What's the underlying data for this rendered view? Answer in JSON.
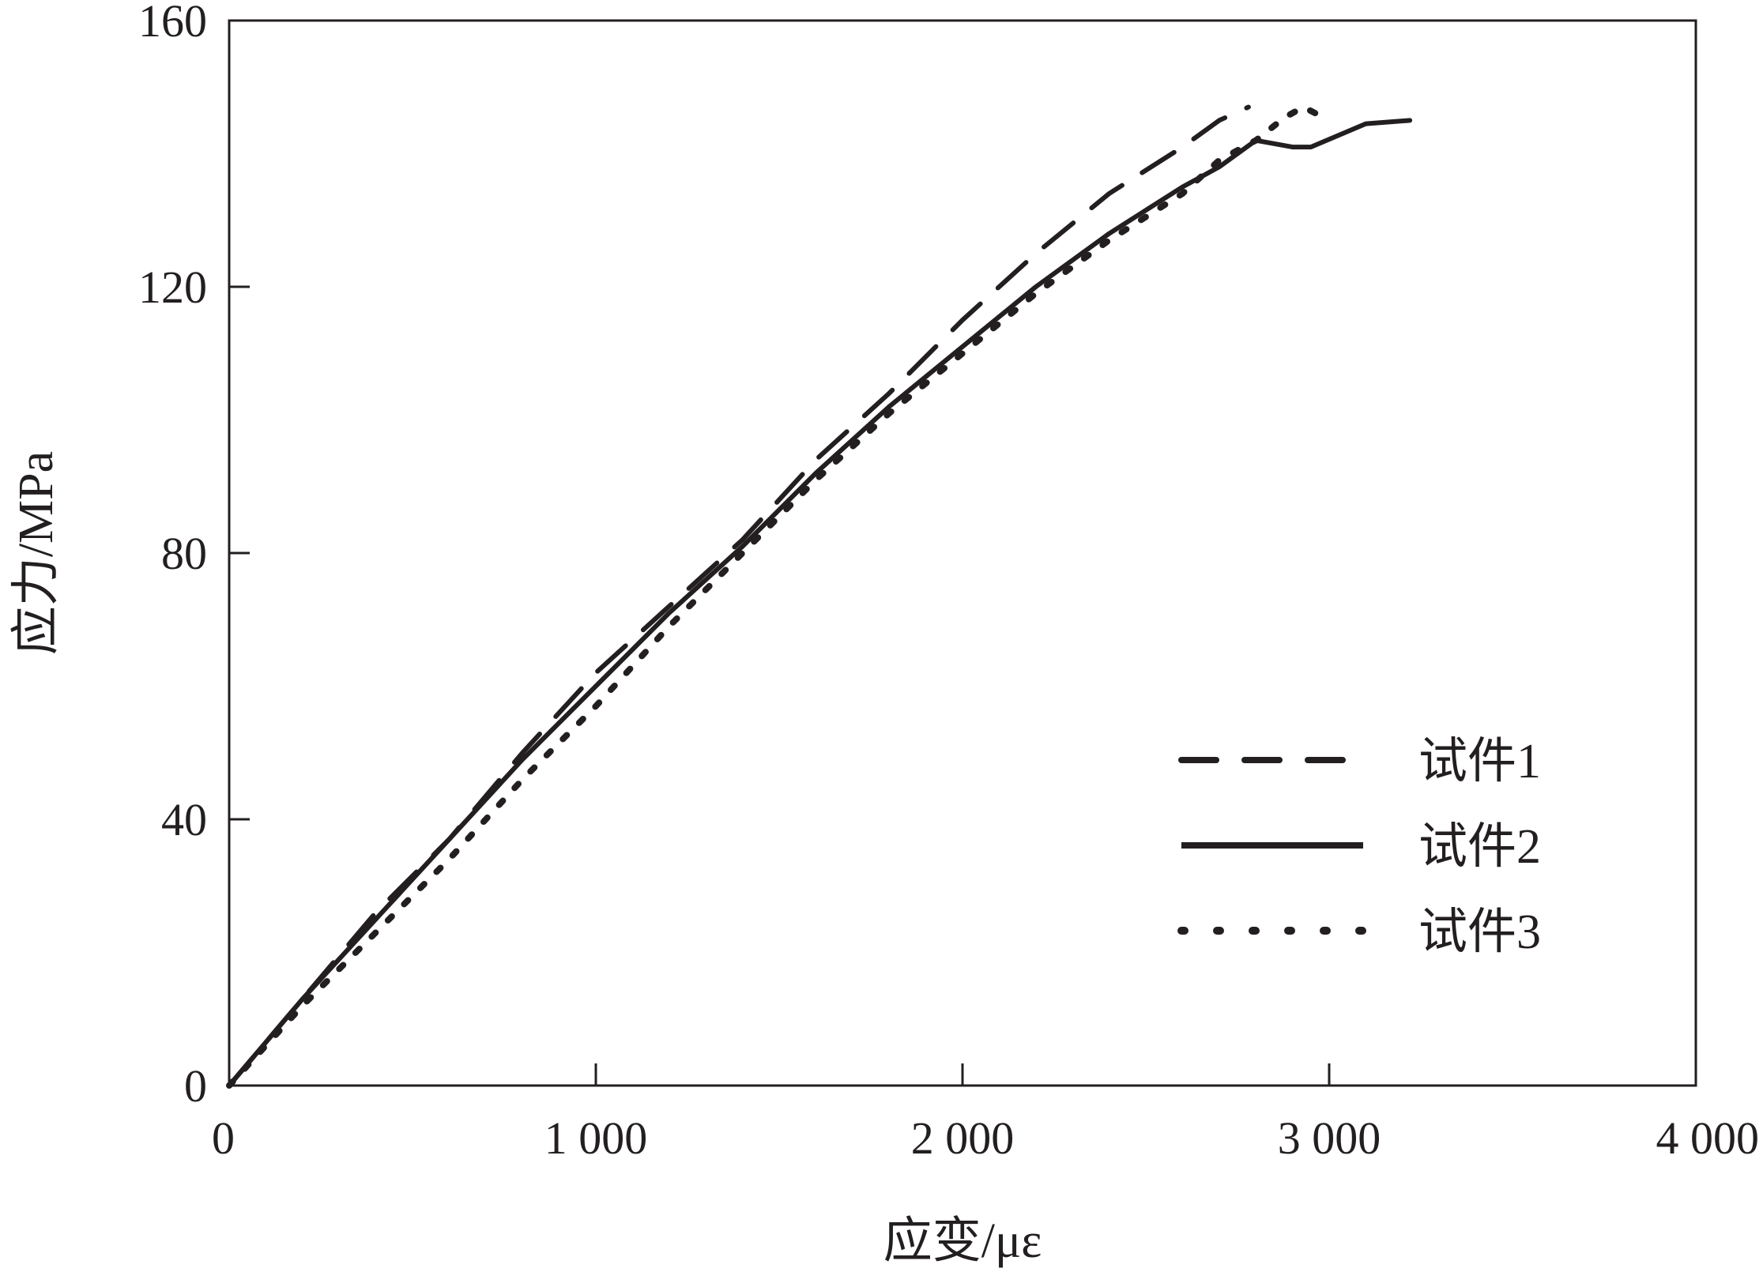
{
  "chart_data": {
    "type": "line",
    "title": "",
    "xlabel": "应变/με",
    "ylabel": "应力/MPa",
    "xlim": [
      0,
      4000
    ],
    "ylim": [
      0,
      160
    ],
    "x_ticks": [
      {
        "value": 0,
        "label": "0"
      },
      {
        "value": 1000,
        "label": "1 000"
      },
      {
        "value": 2000,
        "label": "2 000"
      },
      {
        "value": 3000,
        "label": "3 000"
      },
      {
        "value": 4000,
        "label": "4 000"
      }
    ],
    "y_ticks": [
      {
        "value": 0,
        "label": "0"
      },
      {
        "value": 40,
        "label": "40"
      },
      {
        "value": 80,
        "label": "80"
      },
      {
        "value": 120,
        "label": "120"
      },
      {
        "value": 160,
        "label": "160"
      }
    ],
    "grid": false,
    "legend_position": "lower-right",
    "series": [
      {
        "name": "试件1",
        "style": "dashed",
        "color": "#231f20",
        "points": [
          [
            0,
            0
          ],
          [
            200,
            13
          ],
          [
            400,
            26
          ],
          [
            600,
            37
          ],
          [
            800,
            50
          ],
          [
            1000,
            62
          ],
          [
            1200,
            72
          ],
          [
            1400,
            82
          ],
          [
            1600,
            94
          ],
          [
            1800,
            104
          ],
          [
            2000,
            115
          ],
          [
            2200,
            125
          ],
          [
            2400,
            134
          ],
          [
            2600,
            141
          ],
          [
            2700,
            145
          ],
          [
            2780,
            147
          ]
        ]
      },
      {
        "name": "试件2",
        "style": "solid",
        "color": "#231f20",
        "points": [
          [
            0,
            0
          ],
          [
            200,
            13
          ],
          [
            400,
            25
          ],
          [
            600,
            37
          ],
          [
            800,
            49
          ],
          [
            1000,
            60
          ],
          [
            1200,
            71
          ],
          [
            1400,
            81
          ],
          [
            1600,
            92
          ],
          [
            1800,
            102
          ],
          [
            2000,
            111
          ],
          [
            2200,
            120
          ],
          [
            2400,
            128
          ],
          [
            2600,
            135
          ],
          [
            2700,
            138
          ],
          [
            2800,
            142
          ],
          [
            2900,
            141
          ],
          [
            2950,
            141
          ],
          [
            3100,
            144.5
          ],
          [
            3220,
            145
          ]
        ]
      },
      {
        "name": "试件3",
        "style": "dotted",
        "color": "#231f20",
        "points": [
          [
            0,
            0
          ],
          [
            200,
            12
          ],
          [
            400,
            23
          ],
          [
            600,
            34
          ],
          [
            800,
            46
          ],
          [
            1000,
            57
          ],
          [
            1200,
            69
          ],
          [
            1400,
            80
          ],
          [
            1600,
            91
          ],
          [
            1800,
            101
          ],
          [
            2000,
            110
          ],
          [
            2200,
            119
          ],
          [
            2400,
            127
          ],
          [
            2600,
            134
          ],
          [
            2700,
            139
          ],
          [
            2800,
            142
          ],
          [
            2880,
            145.5
          ],
          [
            2930,
            147
          ],
          [
            3000,
            145
          ]
        ]
      }
    ]
  }
}
